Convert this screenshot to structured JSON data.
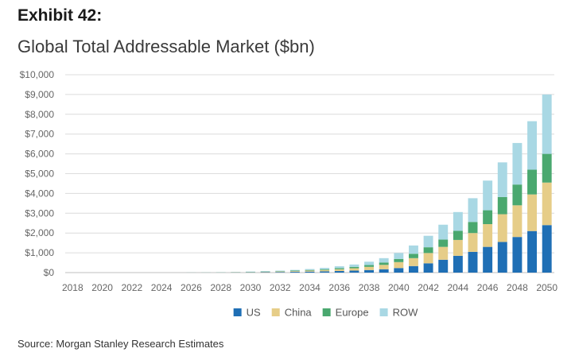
{
  "header": {
    "exhibit": "Exhibit 42:",
    "title": "Global Total Addressable Market ($bn)"
  },
  "footer": {
    "source": "Source: Morgan Stanley Research Estimates"
  },
  "chart_data": {
    "type": "bar",
    "stacked": true,
    "title": "Global Total Addressable Market ($bn)",
    "xlabel": "",
    "ylabel": "",
    "ylim": [
      0,
      10000
    ],
    "y_ticks": [
      0,
      1000,
      2000,
      3000,
      4000,
      5000,
      6000,
      7000,
      8000,
      9000,
      10000
    ],
    "y_tick_labels": [
      "$0",
      "$1,000",
      "$2,000",
      "$3,000",
      "$4,000",
      "$5,000",
      "$6,000",
      "$7,000",
      "$8,000",
      "$9,000",
      "$10,000"
    ],
    "grid": true,
    "legend_position": "bottom",
    "categories": [
      "2018",
      "2019",
      "2020",
      "2021",
      "2022",
      "2023",
      "2024",
      "2025",
      "2026",
      "2027",
      "2028",
      "2029",
      "2030",
      "2031",
      "2032",
      "2033",
      "2034",
      "2035",
      "2036",
      "2037",
      "2038",
      "2039",
      "2040",
      "2041",
      "2042",
      "2043",
      "2044",
      "2045",
      "2046",
      "2047",
      "2048",
      "2049",
      "2050"
    ],
    "x_tick_labels": [
      "2018",
      "2020",
      "2022",
      "2024",
      "2026",
      "2028",
      "2030",
      "2032",
      "2034",
      "2036",
      "2038",
      "2040",
      "2042",
      "2044",
      "2046",
      "2048",
      "2050"
    ],
    "series": [
      {
        "name": "US",
        "color": "#1f6fb5",
        "values": [
          0,
          0,
          0,
          0,
          0,
          0,
          0,
          0,
          2,
          4,
          6,
          10,
          14,
          20,
          28,
          38,
          50,
          65,
          80,
          100,
          130,
          170,
          230,
          330,
          470,
          650,
          850,
          1050,
          1300,
          1550,
          1800,
          2100,
          2400
        ]
      },
      {
        "name": "China",
        "color": "#e6cd88",
        "values": [
          0,
          0,
          0,
          0,
          0,
          0,
          0,
          0,
          2,
          4,
          6,
          10,
          14,
          20,
          28,
          38,
          50,
          65,
          90,
          120,
          160,
          220,
          300,
          400,
          520,
          650,
          800,
          950,
          1150,
          1400,
          1600,
          1850,
          2150
        ]
      },
      {
        "name": "Europe",
        "color": "#4aa86f",
        "values": [
          0,
          0,
          0,
          0,
          0,
          0,
          0,
          0,
          1,
          2,
          4,
          6,
          10,
          14,
          18,
          24,
          32,
          40,
          55,
          70,
          90,
          120,
          160,
          220,
          290,
          370,
          460,
          560,
          700,
          870,
          1050,
          1250,
          1450
        ]
      },
      {
        "name": "ROW",
        "color": "#a9d8e4",
        "values": [
          0,
          0,
          0,
          0,
          0,
          0,
          0,
          0,
          2,
          4,
          6,
          10,
          14,
          20,
          26,
          36,
          48,
          70,
          95,
          120,
          170,
          220,
          300,
          420,
          580,
          750,
          950,
          1200,
          1500,
          1750,
          2100,
          2450,
          3000
        ]
      }
    ]
  }
}
